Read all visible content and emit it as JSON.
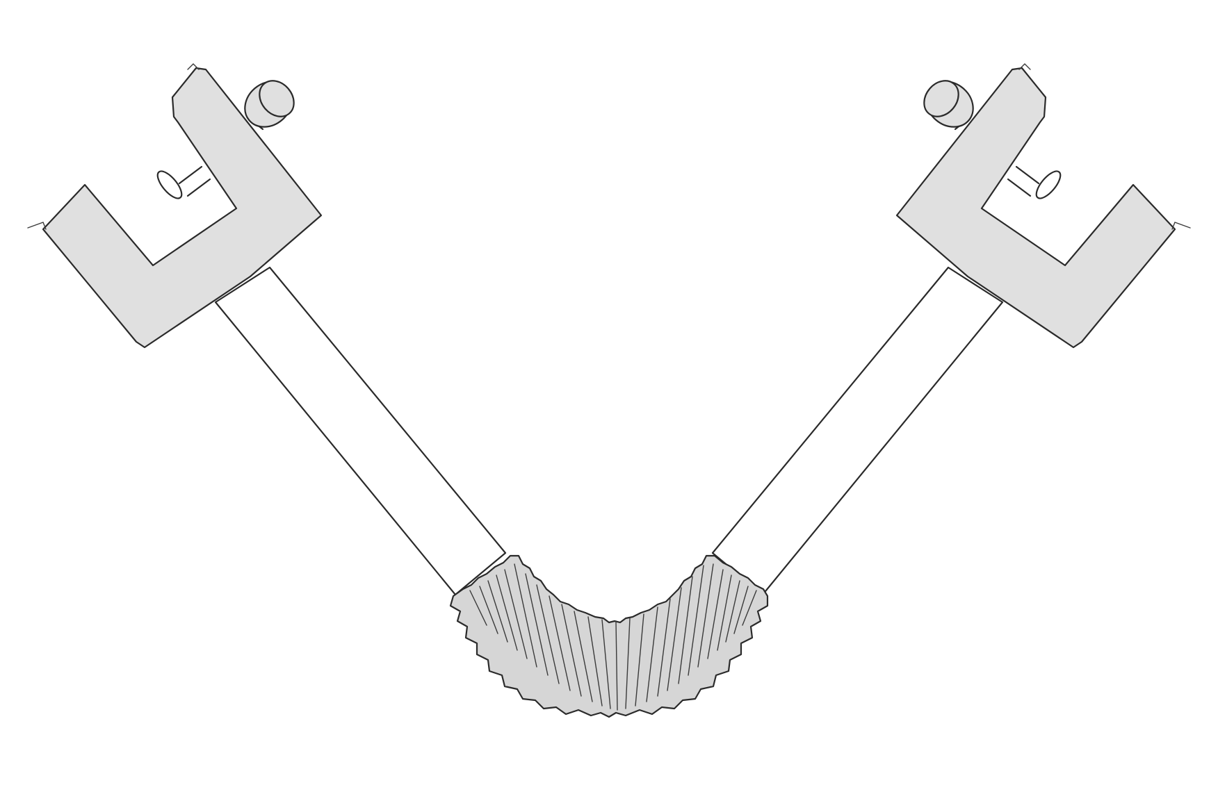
{
  "colors": {
    "background": "#ffffff",
    "part_fill": "#e0e0e0",
    "bellows_fill": "#d6d6d6",
    "tube_fill": "#ffffff",
    "outline": "#2a2a2a"
  },
  "figure": {
    "parts": [
      "left-c-clamp",
      "left-clamp-screw",
      "left-rigid-tube",
      "flexible-bellows-joint",
      "right-rigid-tube",
      "right-clamp-screw",
      "right-c-clamp"
    ]
  }
}
